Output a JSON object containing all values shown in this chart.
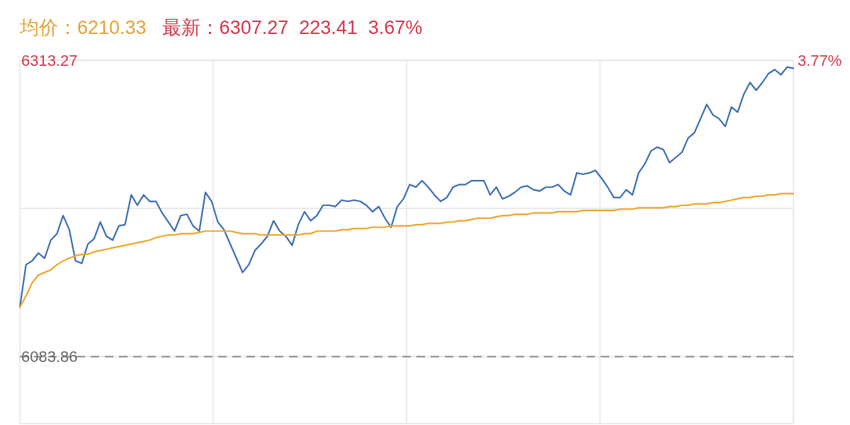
{
  "chart_data": {
    "type": "line",
    "annotations": [
      "均价：6210.33",
      "最新：6307.27  223.41  3.67%",
      "3.77%"
    ],
    "categories": [
      null,
      null,
      null,
      null,
      null,
      null,
      null,
      null,
      null,
      null,
      null,
      null,
      null,
      null,
      null,
      null,
      null,
      null,
      null,
      null,
      null,
      null,
      null,
      null,
      null,
      null,
      null,
      null,
      null,
      null,
      null,
      null,
      null,
      null,
      null,
      null,
      null,
      null,
      null,
      null,
      null,
      null,
      null,
      null,
      null,
      null,
      null,
      null,
      null,
      null,
      null,
      null,
      null,
      null,
      null,
      null,
      null,
      null,
      null,
      null,
      null,
      null,
      null,
      null,
      null,
      null,
      null,
      null,
      null,
      null,
      null,
      null,
      null,
      null,
      null,
      null,
      null,
      null,
      null,
      null,
      null,
      null,
      null,
      null,
      null,
      null,
      null,
      null,
      null,
      null,
      null,
      null,
      null,
      null,
      null,
      null,
      null,
      null,
      null,
      null,
      null,
      null,
      null,
      null,
      null,
      null,
      null,
      null,
      null,
      null,
      null,
      null,
      null,
      null,
      null,
      null,
      null,
      null,
      null,
      null,
      null,
      null,
      null,
      null,
      null,
      null
    ],
    "series": [
      {
        "color": "#3b6db3",
        "values": [
          6122,
          6155,
          6158,
          6164,
          6160,
          6174,
          6179,
          6193,
          6182,
          6158,
          6156,
          6171,
          6175,
          6188,
          6177,
          6174,
          6185,
          6186,
          6209,
          6201,
          6209,
          6204,
          6204,
          6195,
          6188,
          6181,
          6193,
          6194,
          6185,
          6181,
          6211,
          6204,
          6188,
          6182,
          6171,
          6160,
          6149,
          6155,
          6166,
          6171,
          6177,
          6189,
          6181,
          6177,
          6170,
          6186,
          6196,
          6189,
          6193,
          6201,
          6201,
          6200,
          6205,
          6204,
          6205,
          6204,
          6201,
          6196,
          6200,
          6191,
          6184,
          6200,
          6206,
          6217,
          6215,
          6220,
          6215,
          6209,
          6204,
          6207,
          6215,
          6217,
          6217,
          6220,
          6220,
          6220,
          6209,
          6215,
          6206,
          6208,
          6211,
          6215,
          6216,
          6213,
          6212,
          6215,
          6215,
          6217,
          6212,
          6209,
          6226,
          6225,
          6226,
          6228,
          6222,
          6215,
          6207,
          6207,
          6213,
          6209,
          6226,
          6233,
          6243,
          6246,
          6244,
          6234,
          6238,
          6242,
          6253,
          6257,
          6268,
          6279,
          6271,
          6268,
          6262,
          6277,
          6273,
          6287,
          6296,
          6290,
          6296,
          6303,
          6306,
          6302,
          6308,
          6307
        ]
      },
      {
        "color": "#f0a428",
        "values": [
          6122,
          6131,
          6141,
          6147,
          6149,
          6151,
          6155,
          6158,
          6160,
          6162,
          6163,
          6163,
          6165,
          6166,
          6167,
          6168,
          6169,
          6170,
          6171,
          6172,
          6173,
          6174,
          6176,
          6177,
          6178,
          6178,
          6179,
          6179,
          6179,
          6180,
          6181,
          6181,
          6181,
          6181,
          6181,
          6180,
          6179,
          6179,
          6179,
          6178,
          6178,
          6178,
          6178,
          6178,
          6178,
          6178,
          6179,
          6179,
          6181,
          6181,
          6181,
          6181,
          6182,
          6182,
          6183,
          6183,
          6183,
          6184,
          6184,
          6184,
          6185,
          6185,
          6185,
          6185,
          6186,
          6186,
          6187,
          6187,
          6187,
          6188,
          6188,
          6189,
          6189,
          6190,
          6191,
          6191,
          6191,
          6192,
          6193,
          6193,
          6194,
          6194,
          6194,
          6195,
          6195,
          6195,
          6195,
          6196,
          6196,
          6196,
          6196,
          6197,
          6197,
          6197,
          6197,
          6197,
          6197,
          6198,
          6198,
          6198,
          6199,
          6199,
          6199,
          6199,
          6199,
          6200,
          6200,
          6201,
          6201,
          6202,
          6202,
          6202,
          6203,
          6203,
          6204,
          6205,
          6206,
          6207,
          6207,
          6208,
          6208,
          6209,
          6209,
          6210,
          6210,
          6210
        ]
      }
    ],
    "ylim": [
      6032,
      6313.27
    ],
    "yticks": [
      6313.27,
      {
        "value": 6198.57,
        "label": null
      },
      6083.86
    ],
    "ref_lines": [
      {
        "axis": "y",
        "value": 6083.86,
        "color": "#888888",
        "line_style": "dashed"
      }
    ],
    "grid": true
  }
}
